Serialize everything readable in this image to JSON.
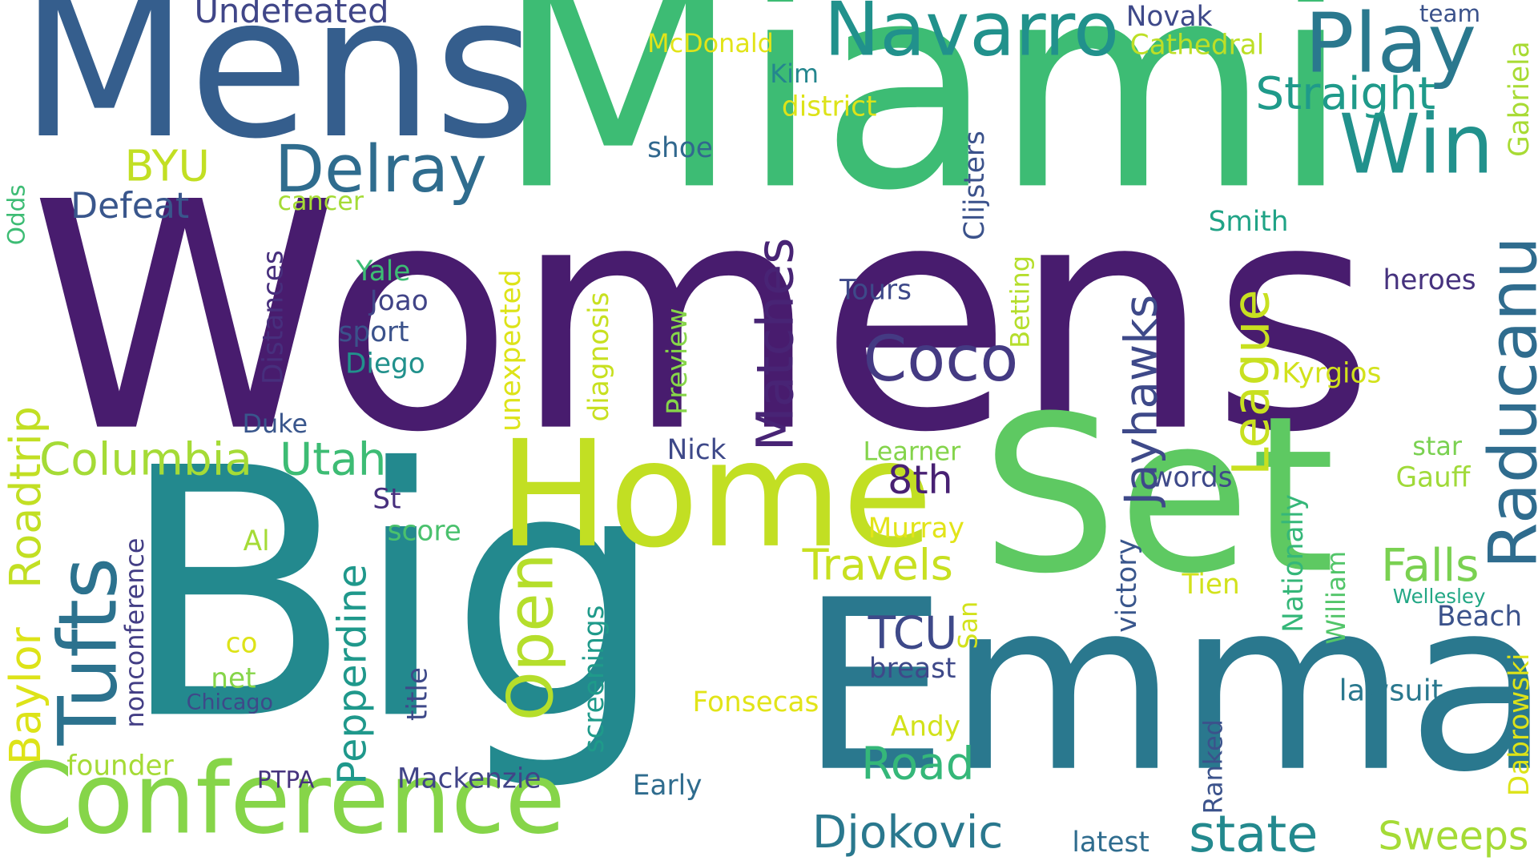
{
  "words": [
    {
      "id": "womens",
      "text": "Womens",
      "color": "#481c6e"
    },
    {
      "id": "big",
      "text": "Big",
      "color": "#23898e"
    },
    {
      "id": "miami",
      "text": "Miami",
      "color": "#3dbc74"
    },
    {
      "id": "mens",
      "text": "Mens",
      "color": "#355e8d"
    },
    {
      "id": "set",
      "text": "Set",
      "color": "#5ec962"
    },
    {
      "id": "emma",
      "text": "Emma",
      "color": "#2a788e"
    },
    {
      "id": "home",
      "text": "Home",
      "color": "#c2df23"
    },
    {
      "id": "conference",
      "text": "Conference",
      "color": "#86d549"
    },
    {
      "id": "play",
      "text": "Play",
      "color": "#2a788e"
    },
    {
      "id": "navarro",
      "text": "Navarro",
      "color": "#21918c"
    },
    {
      "id": "win",
      "text": "Win",
      "color": "#21918c"
    },
    {
      "id": "delray",
      "text": "Delray",
      "color": "#2f6c8e"
    },
    {
      "id": "tufts",
      "text": "Tufts",
      "color": "#2c728e"
    },
    {
      "id": "raducanu",
      "text": "Raducanu",
      "color": "#2f6c8e"
    },
    {
      "id": "coco",
      "text": "Coco",
      "color": "#443a83"
    },
    {
      "id": "open",
      "text": "Open",
      "color": "#b5de2b"
    },
    {
      "id": "matches",
      "text": "Matches",
      "color": "#482475"
    },
    {
      "id": "league",
      "text": "League",
      "color": "#c8e020"
    },
    {
      "id": "jayhawks",
      "text": "Jayhawks",
      "color": "#3e4989"
    },
    {
      "id": "straight",
      "text": "Straight",
      "color": "#1f9a8a"
    },
    {
      "id": "utah",
      "text": "Utah",
      "color": "#3dbc74"
    },
    {
      "id": "columbia",
      "text": "Columbia",
      "color": "#a5db36"
    },
    {
      "id": "roadtrip",
      "text": "Roadtrip",
      "color": "#c2df23"
    },
    {
      "id": "baylor",
      "text": "Baylor",
      "color": "#dde318"
    },
    {
      "id": "pepperdine",
      "text": "Pepperdine",
      "color": "#1f988b"
    },
    {
      "id": "travels",
      "text": "Travels",
      "color": "#c8e020"
    },
    {
      "id": "eighth",
      "text": "8th",
      "color": "#482173"
    },
    {
      "id": "tcu",
      "text": "TCU",
      "color": "#3e4989"
    },
    {
      "id": "road",
      "text": "Road",
      "color": "#35b779"
    },
    {
      "id": "djokovic",
      "text": "Djokovic",
      "color": "#2a788e"
    },
    {
      "id": "state",
      "text": "state",
      "color": "#23898e"
    },
    {
      "id": "sweeps",
      "text": "Sweeps",
      "color": "#a5db36"
    },
    {
      "id": "falls",
      "text": "Falls",
      "color": "#7ad151"
    },
    {
      "id": "byu",
      "text": "BYU",
      "color": "#c2df23"
    },
    {
      "id": "defeat",
      "text": "Defeat",
      "color": "#39568c"
    },
    {
      "id": "undefeated",
      "text": "Undefeated",
      "color": "#404688"
    },
    {
      "id": "mcdonald",
      "text": "McDonald",
      "color": "#e2e418"
    },
    {
      "id": "novak",
      "text": "Novak",
      "color": "#3e4989"
    },
    {
      "id": "cathedral",
      "text": "Cathedral",
      "color": "#bddf26"
    },
    {
      "id": "team",
      "text": "team",
      "color": "#3b528b"
    },
    {
      "id": "kim",
      "text": "Kim",
      "color": "#24868e"
    },
    {
      "id": "district",
      "text": "district",
      "color": "#dde318"
    },
    {
      "id": "shoe",
      "text": "shoe",
      "color": "#31688e"
    },
    {
      "id": "gabriela",
      "text": "Gabriela",
      "color": "#a8db34"
    },
    {
      "id": "odds",
      "text": "Odds",
      "color": "#3dbc74"
    },
    {
      "id": "cancer",
      "text": "cancer",
      "color": "#a5db36"
    },
    {
      "id": "clijsters",
      "text": "Clijsters",
      "color": "#3b528b"
    },
    {
      "id": "smith",
      "text": "Smith",
      "color": "#20a386"
    },
    {
      "id": "heroes",
      "text": "heroes",
      "color": "#46327e"
    },
    {
      "id": "yale",
      "text": "Yale",
      "color": "#3dbc74"
    },
    {
      "id": "joao",
      "text": "Joao",
      "color": "#414487"
    },
    {
      "id": "sport",
      "text": "sport",
      "color": "#3b528b"
    },
    {
      "id": "diego",
      "text": "Diego",
      "color": "#21918c"
    },
    {
      "id": "distances",
      "text": "Distances",
      "color": "#472f7d"
    },
    {
      "id": "unexpected",
      "text": "unexpected",
      "color": "#dde318"
    },
    {
      "id": "diagnosis",
      "text": "diagnosis",
      "color": "#c8e020"
    },
    {
      "id": "preview",
      "text": "Preview",
      "color": "#86d549"
    },
    {
      "id": "betting",
      "text": "Betting",
      "color": "#b5de2b"
    },
    {
      "id": "tours",
      "text": "Tours",
      "color": "#3e4989"
    },
    {
      "id": "kyrgios",
      "text": "Kyrgios",
      "color": "#d2e21b"
    },
    {
      "id": "duke",
      "text": "Duke",
      "color": "#39568c"
    },
    {
      "id": "nick",
      "text": "Nick",
      "color": "#3e4989"
    },
    {
      "id": "learner",
      "text": "Learner",
      "color": "#84d44b"
    },
    {
      "id": "star",
      "text": "star",
      "color": "#7ad151"
    },
    {
      "id": "words",
      "text": "words",
      "color": "#3e4989"
    },
    {
      "id": "gauff",
      "text": "Gauff",
      "color": "#a0da39"
    },
    {
      "id": "st",
      "text": "St",
      "color": "#472f7d"
    },
    {
      "id": "score",
      "text": "score",
      "color": "#4ac16d"
    },
    {
      "id": "murray",
      "text": "Murray",
      "color": "#e2e418"
    },
    {
      "id": "nonconference",
      "text": "nonconference",
      "color": "#433e85"
    },
    {
      "id": "al",
      "text": "Al",
      "color": "#a5db36"
    },
    {
      "id": "screenings",
      "text": "screenings",
      "color": "#1f9a8a"
    },
    {
      "id": "victory",
      "text": "victory",
      "color": "#39568c"
    },
    {
      "id": "nationally",
      "text": "Nationally",
      "color": "#35b779"
    },
    {
      "id": "tien",
      "text": "Tien",
      "color": "#d2e21b"
    },
    {
      "id": "william",
      "text": "William",
      "color": "#52c569"
    },
    {
      "id": "wellesley",
      "text": "Wellesley",
      "color": "#22a785"
    },
    {
      "id": "beach",
      "text": "Beach",
      "color": "#3b528b"
    },
    {
      "id": "san",
      "text": "San",
      "color": "#d2e21b"
    },
    {
      "id": "co",
      "text": "co",
      "color": "#dde318"
    },
    {
      "id": "net",
      "text": "net",
      "color": "#86d549"
    },
    {
      "id": "chicago",
      "text": "Chicago",
      "color": "#3e4989"
    },
    {
      "id": "title",
      "text": "title",
      "color": "#3e4989"
    },
    {
      "id": "breast",
      "text": "breast",
      "color": "#3e4989"
    },
    {
      "id": "dabrowski",
      "text": "Dabrowski",
      "color": "#dde318"
    },
    {
      "id": "fonsecas",
      "text": "Fonsecas",
      "color": "#e2e418"
    },
    {
      "id": "lawsuit",
      "text": "lawsuit",
      "color": "#2a788e"
    },
    {
      "id": "andy",
      "text": "Andy",
      "color": "#d2e21b"
    },
    {
      "id": "ranked",
      "text": "Ranked",
      "color": "#3b528b"
    },
    {
      "id": "founder",
      "text": "founder",
      "color": "#a5db36"
    },
    {
      "id": "ptpa",
      "text": "PTPA",
      "color": "#46337e"
    },
    {
      "id": "mackenzie",
      "text": "Mackenzie",
      "color": "#414487"
    },
    {
      "id": "early",
      "text": "Early",
      "color": "#2f6c8e"
    },
    {
      "id": "latest",
      "text": "latest",
      "color": "#2f6c8e"
    }
  ]
}
